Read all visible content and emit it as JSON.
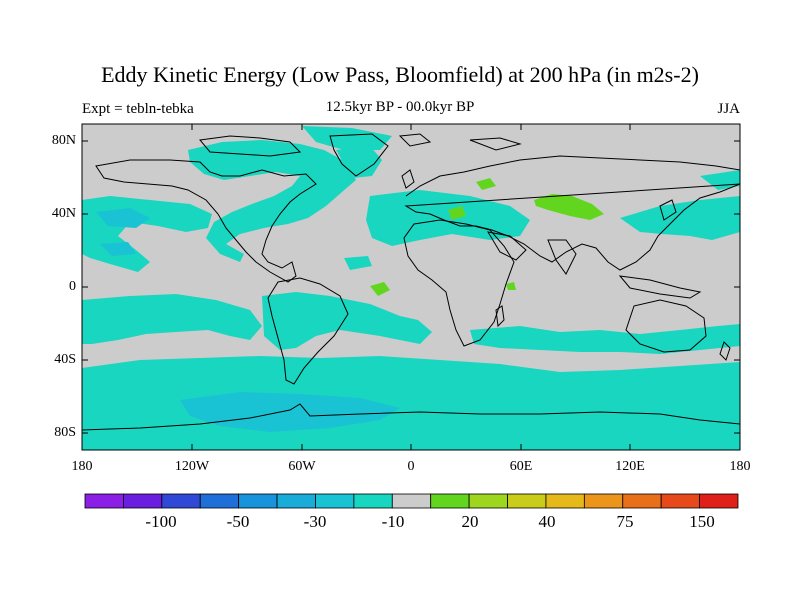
{
  "title": "Eddy Kinetic Energy (Low Pass, Bloomfield) at 200 hPa (in m2s-2)",
  "subtitle_left": "Expt = tebln-tebka",
  "subtitle_center": "12.5kyr BP - 00.0kyr BP",
  "subtitle_right": "JJA",
  "y_ticks": [
    "80N",
    "40N",
    "0",
    "40S",
    "80S"
  ],
  "x_ticks": [
    "180",
    "120W",
    "60W",
    "0",
    "60E",
    "120E",
    "180"
  ],
  "colorbar": {
    "colors": [
      "#8b1fe6",
      "#6a1fe0",
      "#2f49d6",
      "#1f6fd8",
      "#1a93dd",
      "#19acd9",
      "#19c3d3",
      "#19d6c0",
      "#cccccc",
      "#62d61f",
      "#9ed61f",
      "#c9cc1a",
      "#e6b91a",
      "#eb961a",
      "#e8701a",
      "#e64a1a",
      "#e01f1a"
    ],
    "labels": [
      "-100",
      "-50",
      "-30",
      "-10",
      "20",
      "40",
      "75",
      "150"
    ]
  },
  "colors": {
    "land_gray": "#cccccc",
    "neg_teal": "#19d6c0",
    "neg_cyan": "#19c3d3",
    "pos_green": "#62d61f",
    "coast": "#000000"
  }
}
